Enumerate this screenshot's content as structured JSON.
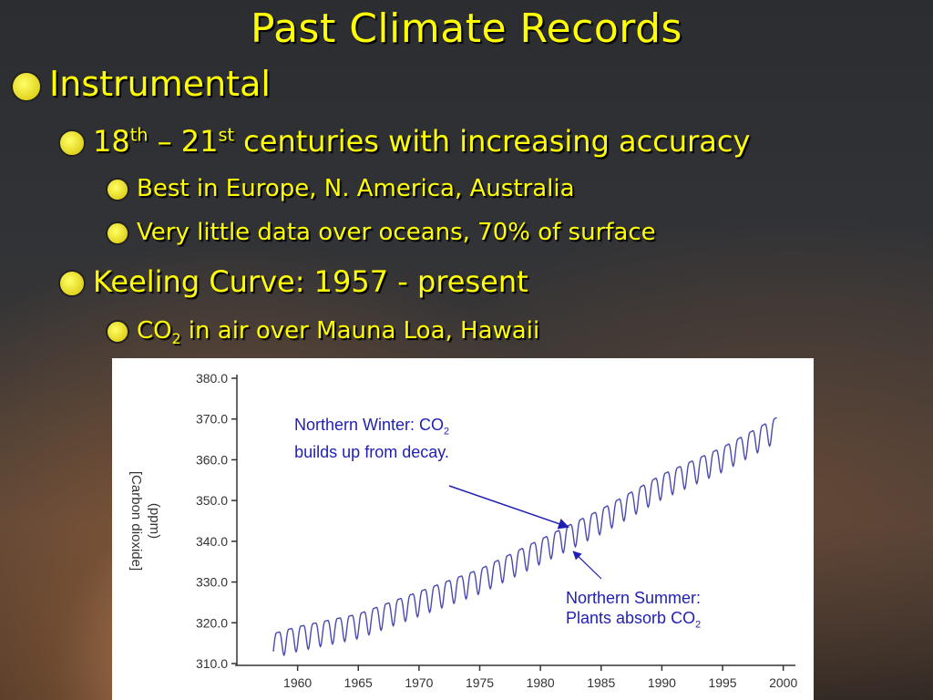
{
  "slide": {
    "title": "Past Climate Records",
    "bullets": {
      "instrumental": "Instrumental",
      "centuries_a": "18",
      "centuries_sup_a": "th",
      "centuries_b": " – 21",
      "centuries_sup_b": "st",
      "centuries_c": " centuries with increasing accuracy",
      "best": "Best in Europe, N. America, Australia",
      "little": "Very little data over oceans, 70% of surface",
      "keeling": "Keeling Curve: 1957 - present",
      "co2_a": "CO",
      "co2_sub": "2",
      "co2_b": " in air over Mauna Loa, Hawaii"
    }
  },
  "colors": {
    "accent": "#ffff00",
    "series": "#4a4ab0",
    "annotation": "#1f1fb4"
  },
  "chart_data": {
    "type": "line",
    "title": "",
    "xlabel": "",
    "ylabel": "[Carbon dioxide] (ppm)",
    "xlim": [
      1955,
      2001
    ],
    "ylim": [
      310,
      380
    ],
    "x_ticks": [
      "1960",
      "1965",
      "1970",
      "1975",
      "1980",
      "1985",
      "1990",
      "1995",
      "2000"
    ],
    "y_ticks": [
      "310.0",
      "320.0",
      "330.0",
      "340.0",
      "350.0",
      "360.0",
      "370.0",
      "380.0"
    ],
    "grid": false,
    "series": [
      {
        "trend_x": [
          1958,
          1960,
          1965,
          1970,
          1975,
          1980,
          1985,
          1990,
          1995,
          1999.5
        ],
        "trend_y": [
          315.2,
          316.9,
          320.0,
          325.5,
          331.0,
          338.3,
          345.7,
          354.2,
          360.9,
          368.3
        ],
        "seasonal_amplitude_ppm": 3.0
      }
    ],
    "annotations": [
      {
        "line1": "Northern Winter: CO",
        "sub": "2",
        "line2": "builds up from decay.",
        "target_x": 1982.3,
        "target_y": 343.5
      },
      {
        "line1": "Northern Summer:",
        "line2": "Plants absorb CO",
        "sub": "2",
        "target_x": 1982.7,
        "target_y": 337.5
      }
    ]
  }
}
